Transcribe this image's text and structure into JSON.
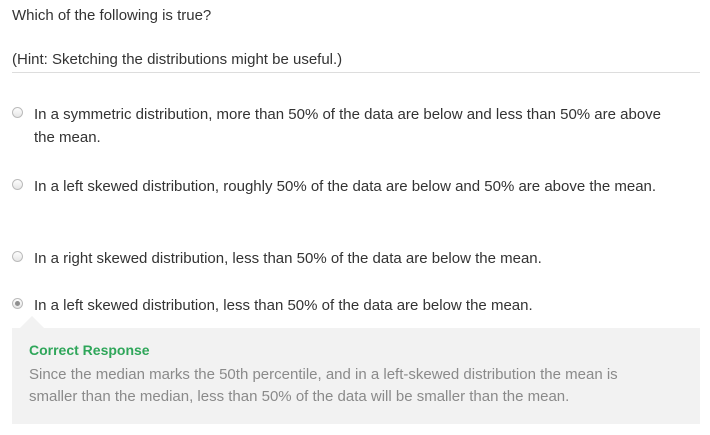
{
  "question": {
    "prompt": "Which of the following is true?",
    "hint": "(Hint: Sketching the distributions might be useful.)"
  },
  "options": [
    {
      "label": "In a symmetric distribution, more than 50% of the data are below and less than 50% are above the mean.",
      "selected": false
    },
    {
      "label": "In a left skewed distribution, roughly 50% of the data are below and 50% are above the mean.",
      "selected": false
    },
    {
      "label": "In a right skewed distribution, less than 50% of the data are below the mean.",
      "selected": false
    },
    {
      "label": "In a left skewed distribution, less than 50% of the data are below the mean.",
      "selected": true
    }
  ],
  "feedback": {
    "title": "Correct Response",
    "body": "Since the median marks the 50th percentile, and in a left-skewed distribution the mean is smaller than the median, less than 50% of the data will be smaller than the mean.",
    "title_color": "#2fa65a"
  }
}
